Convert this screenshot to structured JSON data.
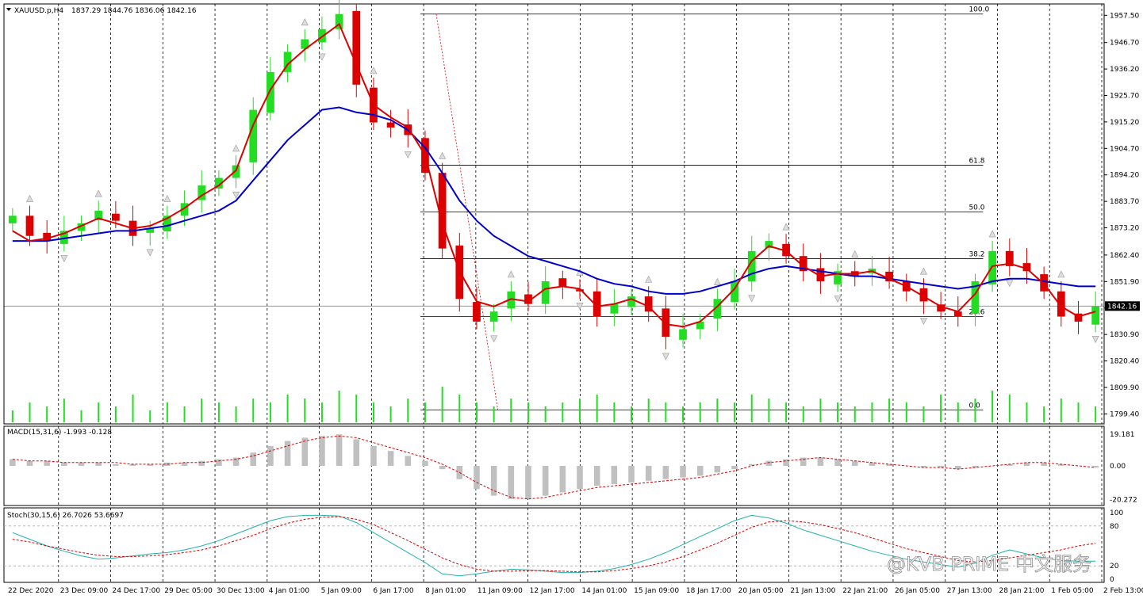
{
  "header": {
    "symbol": "XAUUSD.p,H4",
    "ohlc": "1837.29 1844.76 1836.06 1842.16"
  },
  "price_axis_labels": [
    "1957.50",
    "1946.70",
    "1936.20",
    "1925.70",
    "1915.20",
    "1904.70",
    "1894.20",
    "1883.70",
    "1873.20",
    "1862.40",
    "1851.90",
    "1841.40",
    "1830.90",
    "1820.40",
    "1809.90",
    "1799.40"
  ],
  "current_price_label": "1842.16",
  "time_axis_labels": [
    "22 Dec 2020",
    "23 Dec 09:00",
    "24 Dec 17:00",
    "29 Dec 05:00",
    "30 Dec 13:00",
    "4 Jan 01:00",
    "5 Jan 09:00",
    "6 Jan 17:00",
    "8 Jan 01:00",
    "11 Jan 09:00",
    "12 Jan 17:00",
    "14 Jan 01:00",
    "15 Jan 09:00",
    "18 Jan 17:00",
    "20 Jan 05:00",
    "21 Jan 13:00",
    "22 Jan 21:00",
    "26 Jan 05:00",
    "27 Jan 13:00",
    "28 Jan 21:00",
    "1 Feb 05:00",
    "2 Feb 13:00"
  ],
  "fib_levels": [
    "100.0",
    "61.8",
    "50.0",
    "38.2",
    "23.6",
    "0.0"
  ],
  "macd": {
    "label": "MACD(15,31,6) -1.993 -0.128",
    "axis_labels": [
      "19.181",
      "0.00",
      "-20.272"
    ]
  },
  "stoch": {
    "label": "Stoch(30,15,6) 26.7026 53.6697",
    "axis_labels": [
      "100",
      "80",
      "20",
      "0"
    ]
  },
  "watermark": "@KVB PRIME 中文服务",
  "colors": {
    "bull": "#22dd22",
    "bear": "#dd0000",
    "ma_fast": "#dd0000",
    "ma_slow": "#0000cc",
    "macd_signal": "#dd0000",
    "stoch_main": "#20b2aa",
    "stoch_signal": "#dd0000"
  },
  "chart_data": {
    "type": "candlestick",
    "title": "XAUUSD.p,H4",
    "ylim": [
      1797,
      1962
    ],
    "x_categories": [
      "22 Dec 2020",
      "23 Dec 09:00",
      "24 Dec 17:00",
      "29 Dec 05:00",
      "30 Dec 13:00",
      "4 Jan 01:00",
      "5 Jan 09:00",
      "6 Jan 17:00",
      "8 Jan 01:00",
      "11 Jan 09:00",
      "12 Jan 17:00",
      "14 Jan 01:00",
      "15 Jan 09:00",
      "18 Jan 17:00",
      "20 Jan 05:00",
      "21 Jan 13:00",
      "22 Jan 21:00",
      "26 Jan 05:00",
      "27 Jan 13:00",
      "28 Jan 21:00",
      "1 Feb 05:00",
      "2 Feb 13:00"
    ],
    "close_path": [
      1878,
      1870,
      1868,
      1872,
      1875,
      1880,
      1876,
      1870,
      1873,
      1878,
      1883,
      1890,
      1893,
      1898,
      1920,
      1935,
      1943,
      1948,
      1952,
      1958,
      1930,
      1915,
      1913,
      1910,
      1895,
      1865,
      1845,
      1836,
      1840,
      1848,
      1843,
      1852,
      1850,
      1848,
      1838,
      1843,
      1846,
      1840,
      1830,
      1833,
      1836,
      1845,
      1852,
      1864,
      1868,
      1862,
      1856,
      1852,
      1856,
      1854,
      1857,
      1852,
      1848,
      1844,
      1840,
      1838,
      1852,
      1864,
      1858,
      1856,
      1848,
      1838,
      1836,
      1842
    ],
    "ma_fast": [
      1872,
      1868,
      1869,
      1871,
      1874,
      1877,
      1875,
      1873,
      1874,
      1877,
      1881,
      1886,
      1890,
      1896,
      1914,
      1928,
      1938,
      1944,
      1949,
      1954,
      1938,
      1922,
      1917,
      1913,
      1902,
      1875,
      1856,
      1844,
      1842,
      1845,
      1844,
      1849,
      1850,
      1849,
      1842,
      1843,
      1845,
      1842,
      1835,
      1834,
      1836,
      1842,
      1849,
      1860,
      1866,
      1864,
      1858,
      1854,
      1855,
      1855,
      1856,
      1853,
      1850,
      1846,
      1842,
      1840,
      1847,
      1858,
      1859,
      1857,
      1851,
      1842,
      1838,
      1840
    ],
    "ma_slow": [
      1868,
      1868,
      1868,
      1869,
      1870,
      1871,
      1872,
      1872,
      1873,
      1874,
      1876,
      1878,
      1880,
      1884,
      1892,
      1900,
      1908,
      1914,
      1920,
      1921,
      1919,
      1918,
      1916,
      1912,
      1905,
      1895,
      1884,
      1876,
      1870,
      1866,
      1862,
      1860,
      1858,
      1856,
      1853,
      1851,
      1850,
      1848,
      1847,
      1847,
      1848,
      1850,
      1852,
      1855,
      1857,
      1858,
      1857,
      1856,
      1855,
      1854,
      1854,
      1853,
      1852,
      1851,
      1850,
      1849,
      1850,
      1852,
      1853,
      1853,
      1852,
      1851,
      1850,
      1850
    ],
    "volume_rel": [
      0.3,
      0.5,
      0.4,
      0.6,
      0.3,
      0.5,
      0.4,
      0.7,
      0.3,
      0.5,
      0.4,
      0.6,
      0.5,
      0.4,
      0.6,
      0.5,
      0.7,
      0.6,
      0.5,
      0.8,
      0.7,
      0.5,
      0.4,
      0.6,
      0.5,
      0.9,
      0.7,
      0.5,
      0.4,
      0.6,
      0.5,
      0.4,
      0.5,
      0.6,
      0.7,
      0.5,
      0.4,
      0.6,
      0.5,
      0.4,
      0.5,
      0.6,
      0.5,
      0.7,
      0.6,
      0.5,
      0.4,
      0.6,
      0.5,
      0.4,
      0.5,
      0.6,
      0.5,
      0.4,
      0.7,
      0.5,
      0.6,
      0.8,
      0.7,
      0.5,
      0.4,
      0.6,
      0.5,
      0.4
    ],
    "fib_retracement": {
      "high": 1958,
      "low": 1801,
      "levels": [
        100.0,
        61.8,
        50.0,
        38.2,
        23.6,
        0.0
      ]
    },
    "macd": {
      "ylim": [
        -22,
        21
      ],
      "hist": [
        4,
        3,
        3,
        2,
        2,
        2,
        1,
        1,
        1,
        2,
        2,
        3,
        4,
        5,
        8,
        12,
        15,
        17,
        18,
        19,
        16,
        12,
        9,
        6,
        3,
        -2,
        -8,
        -14,
        -18,
        -20,
        -20,
        -18,
        -16,
        -14,
        -12,
        -11,
        -10,
        -9,
        -8,
        -7,
        -6,
        -4,
        -2,
        1,
        3,
        4,
        5,
        5,
        4,
        3,
        2,
        1,
        0,
        -1,
        -1,
        -2,
        -1,
        0,
        1,
        2,
        2,
        1,
        0,
        -1
      ],
      "signal": [
        4,
        3,
        3,
        2,
        2,
        2,
        2,
        1,
        1,
        1,
        2,
        2,
        3,
        4,
        6,
        9,
        12,
        15,
        17,
        18,
        17,
        14,
        11,
        8,
        5,
        1,
        -4,
        -10,
        -15,
        -19,
        -20,
        -19,
        -17,
        -15,
        -13,
        -12,
        -11,
        -10,
        -9,
        -8,
        -7,
        -5,
        -3,
        0,
        2,
        3,
        4,
        5,
        4,
        3,
        2,
        1,
        0,
        -1,
        -1,
        -2,
        -1,
        0,
        1,
        2,
        2,
        1,
        0,
        -1
      ]
    },
    "stoch": {
      "ylim": [
        0,
        100
      ],
      "main": [
        70,
        60,
        50,
        42,
        35,
        30,
        32,
        35,
        38,
        40,
        44,
        50,
        58,
        68,
        78,
        88,
        94,
        96,
        96,
        95,
        85,
        70,
        55,
        40,
        25,
        8,
        5,
        8,
        12,
        15,
        14,
        12,
        10,
        10,
        12,
        16,
        22,
        30,
        40,
        52,
        64,
        76,
        88,
        96,
        92,
        84,
        74,
        66,
        58,
        50,
        42,
        36,
        30,
        26,
        22,
        18,
        24,
        36,
        44,
        38,
        32,
        28,
        27,
        27
      ],
      "signal": [
        60,
        56,
        50,
        45,
        40,
        36,
        34,
        34,
        35,
        37,
        40,
        44,
        50,
        58,
        66,
        76,
        84,
        90,
        93,
        94,
        90,
        82,
        70,
        58,
        45,
        32,
        22,
        15,
        12,
        12,
        13,
        13,
        12,
        11,
        11,
        13,
        16,
        20,
        26,
        34,
        44,
        54,
        66,
        78,
        86,
        88,
        86,
        82,
        76,
        70,
        62,
        54,
        46,
        40,
        34,
        28,
        26,
        28,
        32,
        36,
        40,
        44,
        50,
        54
      ]
    }
  }
}
